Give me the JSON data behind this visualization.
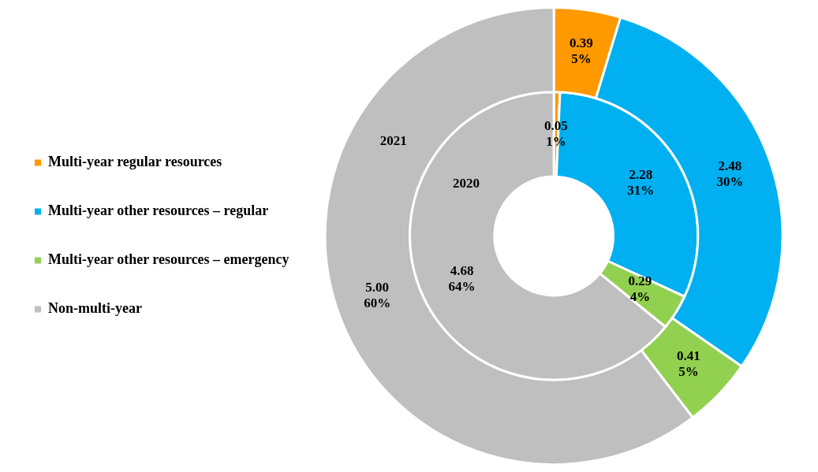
{
  "chart_data": {
    "type": "donut",
    "categories": [
      "Multi-year regular resources",
      "Multi-year other resources – regular",
      "Multi-year other resources – emergency",
      "Non-multi-year"
    ],
    "series": [
      {
        "name": "2021",
        "values": [
          0.39,
          2.48,
          0.41,
          5.0
        ],
        "colors": [
          "#ff9900",
          "#00b0f0",
          "#92d050",
          "#bfbfbf"
        ],
        "value_labels": [
          "0.39\n5%",
          "2.48\n30%",
          "0.41\n5%",
          "5.00\n60%"
        ]
      },
      {
        "name": "2020",
        "values": [
          0.05,
          2.28,
          0.29,
          4.68
        ],
        "colors": [
          "#ff9900",
          "#00b0f0",
          "#92d050",
          "#bfbfbf"
        ],
        "value_labels": [
          "0.05\n1%",
          "2.28\n31%",
          "0.29\n4%",
          "4.68\n64%"
        ]
      }
    ],
    "legend": "left"
  }
}
